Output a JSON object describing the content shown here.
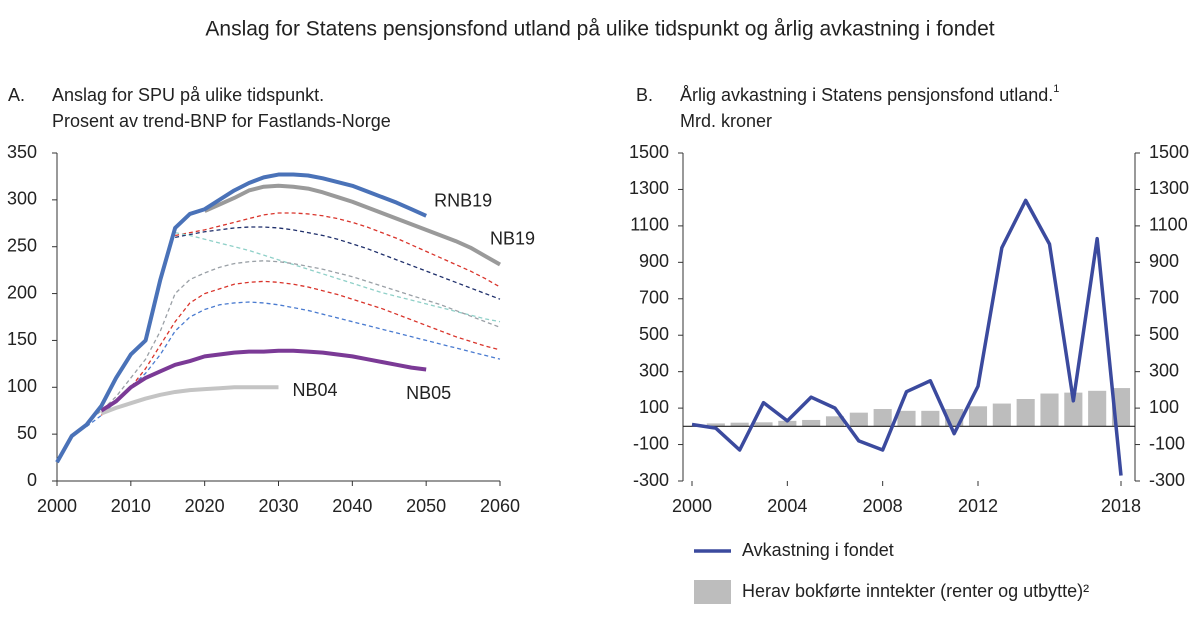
{
  "title": "Anslag for Statens pensjonsfond utland på ulike tidspunkt og årlig avkastning i fondet",
  "chart_data": [
    {
      "type": "line",
      "label": "A.",
      "title": "Anslag for SPU på ulike tidspunkt.",
      "subtitle": "Prosent av trend-BNP for Fastlands-Norge",
      "x": [
        2000,
        2002,
        2004,
        2006,
        2008,
        2010,
        2012,
        2014,
        2016,
        2018,
        2020,
        2022,
        2024,
        2026,
        2028,
        2030,
        2032,
        2034,
        2036,
        2038,
        2040,
        2042,
        2044,
        2046,
        2048,
        2050,
        2052,
        2054,
        2056,
        2058,
        2060
      ],
      "xlim": [
        2000,
        2060
      ],
      "xticks": [
        2000,
        2010,
        2020,
        2030,
        2040,
        2050,
        2060
      ],
      "ylim": [
        0,
        350
      ],
      "yticks": [
        0,
        50,
        100,
        150,
        200,
        250,
        300,
        350
      ],
      "series": [
        {
          "color": "#d9342b",
          "dashed": true,
          "values": [
            null,
            null,
            null,
            null,
            null,
            null,
            null,
            null,
            262,
            265,
            268,
            272,
            276,
            280,
            284,
            286,
            286,
            285,
            283,
            280,
            276,
            271,
            265,
            259,
            252,
            245,
            238,
            231,
            224,
            216,
            207
          ]
        },
        {
          "color": "#1f2f6b",
          "dashed": true,
          "values": [
            null,
            null,
            null,
            null,
            null,
            null,
            null,
            null,
            260,
            263,
            266,
            268,
            270,
            271,
            271,
            270,
            268,
            265,
            262,
            258,
            253,
            248,
            242,
            236,
            230,
            224,
            218,
            212,
            206,
            200,
            194
          ]
        },
        {
          "color": "#8fd0c8",
          "dashed": true,
          "values": [
            null,
            null,
            null,
            null,
            null,
            null,
            null,
            null,
            265,
            262,
            258,
            254,
            250,
            246,
            241,
            236,
            231,
            226,
            221,
            216,
            211,
            206,
            201,
            197,
            193,
            189,
            185,
            181,
            177,
            173,
            170
          ]
        },
        {
          "color": "#9aa0a6",
          "dashed": true,
          "values": [
            null,
            null,
            62,
            75,
            90,
            110,
            130,
            160,
            200,
            215,
            222,
            228,
            232,
            234,
            235,
            234,
            232,
            229,
            226,
            222,
            218,
            213,
            208,
            203,
            198,
            193,
            188,
            182,
            176,
            170,
            164
          ]
        },
        {
          "color": "#d9342b",
          "dashed": true,
          "values": [
            null,
            null,
            null,
            70,
            85,
            100,
            120,
            145,
            170,
            190,
            200,
            205,
            210,
            212,
            213,
            212,
            210,
            207,
            203,
            199,
            194,
            189,
            184,
            178,
            172,
            166,
            160,
            154,
            149,
            144,
            140
          ]
        },
        {
          "color": "#4a7bd0",
          "dashed": true,
          "values": [
            null,
            null,
            58,
            70,
            85,
            100,
            115,
            135,
            160,
            175,
            183,
            188,
            190,
            191,
            190,
            188,
            185,
            182,
            178,
            174,
            170,
            166,
            162,
            158,
            154,
            150,
            146,
            142,
            138,
            134,
            130
          ]
        },
        {
          "name": "NB04",
          "color": "#c4c4c4",
          "values": [
            null,
            null,
            null,
            72,
            78,
            83,
            88,
            92,
            95,
            97,
            98,
            99,
            100,
            100,
            100,
            100,
            null,
            null,
            null,
            null,
            null,
            null,
            null,
            null,
            null,
            null,
            null,
            null,
            null,
            null,
            null
          ]
        },
        {
          "name": "NB05",
          "color": "#7b3a96",
          "values": [
            null,
            null,
            null,
            75,
            85,
            100,
            110,
            117,
            124,
            128,
            133,
            135,
            137,
            138,
            138,
            139,
            139,
            138,
            137,
            135,
            133,
            130,
            127,
            124,
            121,
            119,
            null,
            null,
            null,
            null,
            null
          ]
        },
        {
          "name": "NB19",
          "color": "#9a9a9a",
          "values": [
            null,
            null,
            null,
            null,
            null,
            null,
            null,
            null,
            null,
            null,
            288,
            295,
            302,
            310,
            314,
            315,
            314,
            312,
            308,
            303,
            298,
            292,
            286,
            280,
            274,
            268,
            262,
            256,
            249,
            240,
            231
          ]
        },
        {
          "name": "RNB19",
          "color": "#4a72b8",
          "values": [
            20,
            48,
            60,
            80,
            110,
            135,
            150,
            215,
            270,
            285,
            290,
            300,
            310,
            318,
            324,
            327,
            327,
            326,
            323,
            319,
            315,
            309,
            303,
            297,
            290,
            283,
            null,
            null,
            null,
            null,
            null
          ]
        }
      ]
    },
    {
      "type": "bar-line",
      "label": "B.",
      "title": "Årlig avkastning i Statens pensjonsfond utland.",
      "footnote_mark": "1",
      "subtitle": "Mrd. kroner",
      "x": [
        2000,
        2001,
        2002,
        2003,
        2004,
        2005,
        2006,
        2007,
        2008,
        2009,
        2010,
        2011,
        2012,
        2013,
        2014,
        2015,
        2016,
        2017,
        2018
      ],
      "xlim": [
        2000,
        2018
      ],
      "xticks": [
        2000,
        2004,
        2008,
        2012,
        2018
      ],
      "ylim": [
        -300,
        1500
      ],
      "yticks": [
        -300,
        -100,
        100,
        300,
        500,
        700,
        900,
        1100,
        1300,
        1500
      ],
      "y2lim": [
        -300,
        1500
      ],
      "y2ticks": [
        -300,
        -100,
        100,
        300,
        500,
        700,
        900,
        1100,
        1300,
        1500
      ],
      "series": [
        {
          "name": "Avkastning i fondet",
          "type": "line",
          "color": "#3b4a9e",
          "values": [
            10,
            -10,
            -130,
            130,
            30,
            160,
            100,
            -80,
            -130,
            190,
            250,
            -40,
            220,
            980,
            1240,
            1000,
            140,
            1030,
            -270
          ]
        },
        {
          "name": "Herav bokførte inntekter (renter og utbytte)²",
          "type": "bar",
          "color": "#bdbdbd",
          "values": [
            null,
            16,
            20,
            22,
            30,
            35,
            55,
            75,
            95,
            85,
            85,
            95,
            110,
            125,
            150,
            180,
            185,
            195,
            210
          ]
        }
      ]
    }
  ]
}
